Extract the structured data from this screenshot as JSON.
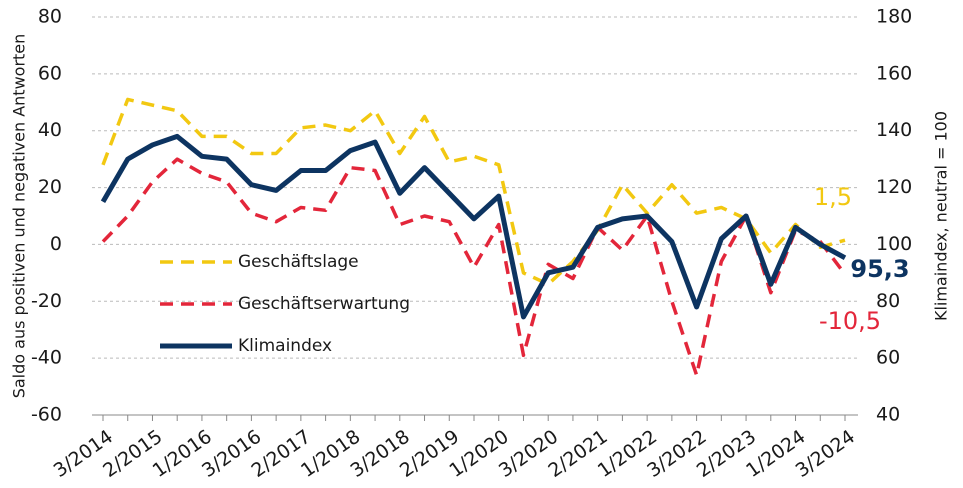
{
  "chart_data": {
    "type": "line",
    "y_label": "Saldo aus positiven und negativen Antworten",
    "y2_label": "Klimaindex, neutral = 100",
    "categories": [
      "3/2014",
      null,
      "2/2015",
      null,
      "1/2016",
      null,
      "3/2016",
      null,
      "2/2017",
      null,
      "1/2018",
      null,
      "3/2018",
      null,
      "2/2019",
      null,
      "1/2020",
      null,
      "3/2020",
      null,
      "2/2021",
      null,
      "1/2022",
      null,
      "3/2022",
      null,
      "2/2023",
      null,
      "1/2024",
      null,
      "3/2024"
    ],
    "series": [
      {
        "name": "Geschäftslage",
        "color": "#f2c811",
        "dash": true,
        "values": [
          28,
          51,
          49,
          47,
          38,
          38,
          32,
          32,
          41,
          42,
          40,
          47,
          32,
          45,
          29,
          31,
          28,
          -10,
          -14,
          -6,
          5,
          21,
          11,
          21,
          11,
          13,
          9,
          -3,
          7,
          -1,
          1.5
        ],
        "value_labels": [
          null,
          null,
          null,
          null,
          null,
          null,
          null,
          null,
          null,
          null,
          null,
          null,
          null,
          null,
          null,
          null,
          null,
          null,
          null,
          null,
          null,
          null,
          null,
          null,
          null,
          null,
          null,
          null,
          null,
          null,
          "1,5"
        ]
      },
      {
        "name": "Geschäftserwartung",
        "color": "#e3263a",
        "dash": true,
        "values": [
          1,
          10,
          22,
          30,
          25,
          22,
          11,
          8,
          13,
          12,
          27,
          26,
          7,
          10,
          8,
          -8,
          7,
          -39,
          -7,
          -12,
          6,
          -2,
          10,
          -20,
          -46,
          -6,
          10,
          -17,
          5,
          1,
          -10.5
        ],
        "value_labels": [
          null,
          null,
          null,
          null,
          null,
          null,
          null,
          null,
          null,
          null,
          null,
          null,
          null,
          null,
          null,
          null,
          null,
          null,
          null,
          null,
          null,
          null,
          null,
          null,
          null,
          null,
          null,
          null,
          null,
          null,
          "-10,5"
        ]
      },
      {
        "name": "Klimaindex",
        "color": "#0d3461",
        "dash": false,
        "axis": "y2",
        "values": [
          115,
          130,
          135,
          138,
          131,
          130,
          121,
          119,
          126,
          126,
          133,
          136,
          118,
          127,
          118,
          109,
          117,
          74.5,
          90,
          92,
          106,
          109,
          110,
          101,
          78,
          102,
          110,
          86,
          106,
          100,
          95.3
        ],
        "value_labels": [
          null,
          null,
          null,
          null,
          null,
          null,
          null,
          null,
          null,
          null,
          null,
          null,
          null,
          null,
          null,
          null,
          null,
          null,
          null,
          null,
          null,
          null,
          null,
          null,
          null,
          null,
          null,
          null,
          null,
          null,
          "95,3"
        ]
      }
    ],
    "ylim": [
      -60,
      80
    ],
    "yticks": [
      -60,
      -40,
      -20,
      0,
      20,
      40,
      60,
      80
    ],
    "y2lim": [
      40,
      180
    ],
    "y2ticks": [
      40,
      60,
      80,
      100,
      120,
      140,
      160,
      180
    ],
    "grid": true
  }
}
